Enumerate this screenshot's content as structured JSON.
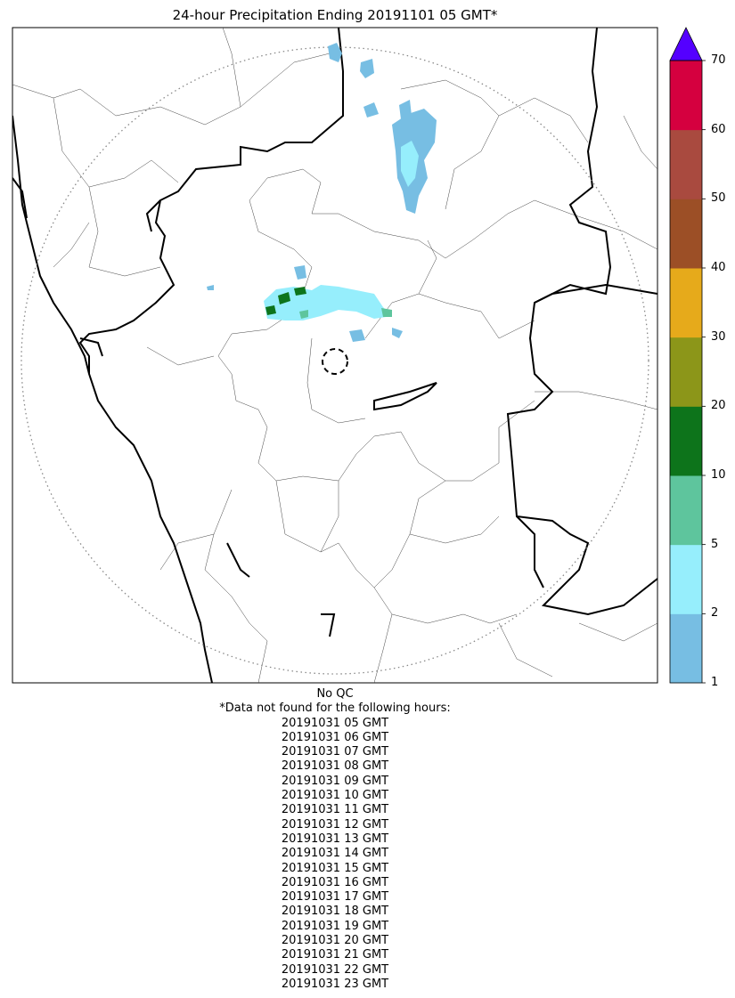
{
  "title": "24-hour Precipitation Ending 20191101 05 GMT*",
  "colorbar": {
    "ticks": [
      "1",
      "2",
      "5",
      "10",
      "20",
      "30",
      "40",
      "50",
      "60",
      "70"
    ],
    "colors": [
      "#77bee3",
      "#96eefc",
      "#5ec59d",
      "#0d741b",
      "#8c9619",
      "#e6aa1b",
      "#9c4f26",
      "#a94a3f",
      "#d5003f"
    ],
    "extend_color": "#5400ff"
  },
  "notes": {
    "qc": "No QC",
    "header": "*Data not found for the following hours:",
    "missing_hours": [
      "20191031 05 GMT",
      "20191031 06 GMT",
      "20191031 07 GMT",
      "20191031 08 GMT",
      "20191031 09 GMT",
      "20191031 10 GMT",
      "20191031 11 GMT",
      "20191031 12 GMT",
      "20191031 13 GMT",
      "20191031 14 GMT",
      "20191031 15 GMT",
      "20191031 16 GMT",
      "20191031 17 GMT",
      "20191031 18 GMT",
      "20191031 19 GMT",
      "20191031 20 GMT",
      "20191031 21 GMT",
      "20191031 22 GMT",
      "20191031 23 GMT"
    ]
  }
}
